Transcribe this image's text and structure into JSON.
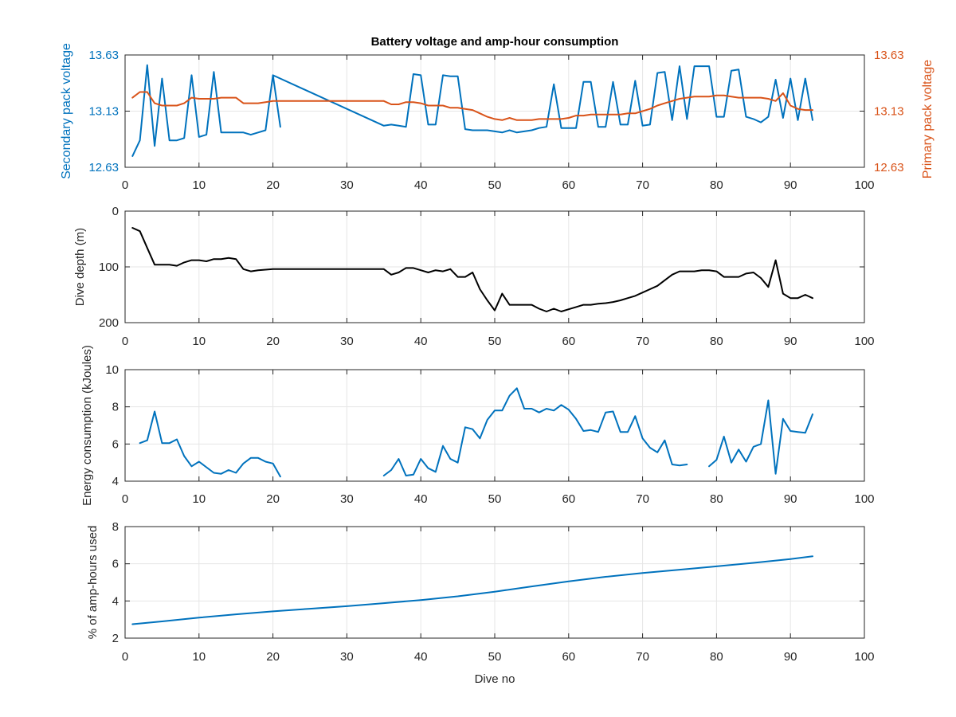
{
  "title": "Battery voltage and amp-hour consumption",
  "colors": {
    "blue": "#0072BD",
    "orange": "#D95319",
    "black": "#000000",
    "grid": "#e6e6e6",
    "axis": "#262626"
  },
  "chart_data": [
    {
      "id": "voltage",
      "type": "line",
      "title": "Battery voltage and amp-hour consumption",
      "xlabel": "",
      "ylabel_left": "Secondary pack voltage",
      "ylabel_right": "Primary pack voltage",
      "xlim": [
        0,
        100
      ],
      "ylim": [
        12.63,
        13.63
      ],
      "ylim_right": [
        12.63,
        13.63
      ],
      "xticks": [
        0,
        10,
        20,
        30,
        40,
        50,
        60,
        70,
        80,
        90,
        100
      ],
      "yticks": [
        12.63,
        13.13,
        13.63
      ],
      "yticklabels": [
        "12.63",
        "13.13",
        "13.63"
      ],
      "yticks_right": [
        12.63,
        13.13,
        13.63
      ],
      "yticklabels_right": [
        "12.63",
        "13.13",
        "13.63"
      ],
      "grid": true,
      "series": [
        {
          "axis": "left",
          "color": "#0072BD",
          "x": [
            1,
            2,
            3,
            4,
            5,
            6,
            7,
            8,
            9,
            10,
            11,
            12,
            13,
            14,
            15,
            16,
            17,
            18,
            19,
            20,
            21,
            null,
            20,
            35,
            36,
            37,
            38,
            39,
            40,
            41,
            42,
            43,
            44,
            45,
            46,
            47,
            48,
            49,
            50,
            51,
            52,
            53,
            54,
            55,
            56,
            57,
            58,
            59,
            60,
            61,
            62,
            63,
            64,
            65,
            66,
            67,
            68,
            69,
            70,
            71,
            72,
            73,
            74,
            75,
            76,
            77,
            78,
            79,
            80,
            81,
            82,
            83,
            84,
            85,
            86,
            87,
            88,
            89,
            90,
            91,
            92,
            93
          ],
          "y": [
            12.73,
            12.87,
            13.54,
            12.82,
            13.42,
            12.87,
            12.87,
            12.89,
            13.45,
            12.9,
            12.92,
            13.48,
            12.94,
            12.94,
            12.94,
            12.94,
            12.92,
            12.94,
            12.96,
            13.45,
            12.99,
            null,
            13.45,
            13.0,
            13.01,
            13.0,
            12.99,
            13.46,
            13.45,
            13.01,
            13.01,
            13.45,
            13.44,
            13.44,
            12.97,
            12.96,
            12.96,
            12.96,
            12.95,
            12.94,
            12.96,
            12.94,
            12.95,
            12.96,
            12.98,
            12.99,
            13.37,
            12.98,
            12.98,
            12.98,
            13.39,
            13.39,
            12.99,
            12.99,
            13.39,
            13.01,
            13.01,
            13.4,
            13.0,
            13.01,
            13.47,
            13.48,
            13.05,
            13.53,
            13.06,
            13.53,
            13.53,
            13.53,
            13.08,
            13.08,
            13.49,
            13.5,
            13.08,
            13.06,
            13.03,
            13.08,
            13.41,
            13.07,
            13.42,
            13.05,
            13.42,
            13.05
          ]
        },
        {
          "axis": "right",
          "color": "#D95319",
          "x": [
            1,
            2,
            3,
            4,
            5,
            6,
            7,
            8,
            9,
            10,
            11,
            12,
            13,
            14,
            15,
            16,
            17,
            18,
            19,
            20,
            21,
            22,
            23,
            24,
            25,
            26,
            27,
            28,
            29,
            30,
            31,
            32,
            33,
            34,
            35,
            36,
            37,
            38,
            39,
            40,
            41,
            42,
            43,
            44,
            45,
            46,
            47,
            48,
            49,
            50,
            51,
            52,
            53,
            54,
            55,
            56,
            57,
            58,
            59,
            60,
            61,
            62,
            63,
            64,
            65,
            66,
            67,
            68,
            69,
            70,
            71,
            72,
            73,
            74,
            75,
            76,
            77,
            78,
            79,
            80,
            81,
            82,
            83,
            84,
            85,
            86,
            87,
            88,
            89,
            90,
            91,
            92,
            93
          ],
          "y": [
            13.25,
            13.3,
            13.3,
            13.2,
            13.18,
            13.18,
            13.18,
            13.2,
            13.25,
            13.24,
            13.24,
            13.24,
            13.25,
            13.25,
            13.25,
            13.2,
            13.2,
            13.2,
            13.21,
            13.22,
            13.22,
            13.22,
            13.22,
            13.22,
            13.22,
            13.22,
            13.22,
            13.22,
            13.22,
            13.22,
            13.22,
            13.22,
            13.22,
            13.22,
            13.22,
            13.19,
            13.19,
            13.21,
            13.21,
            13.2,
            13.18,
            13.18,
            13.18,
            13.16,
            13.16,
            13.15,
            13.14,
            13.11,
            13.08,
            13.06,
            13.05,
            13.07,
            13.05,
            13.05,
            13.05,
            13.06,
            13.06,
            13.06,
            13.06,
            13.07,
            13.09,
            13.09,
            13.1,
            13.1,
            13.1,
            13.1,
            13.1,
            13.11,
            13.11,
            13.13,
            13.15,
            13.18,
            13.2,
            13.22,
            13.24,
            13.25,
            13.26,
            13.26,
            13.26,
            13.27,
            13.27,
            13.26,
            13.25,
            13.25,
            13.25,
            13.25,
            13.24,
            13.22,
            13.29,
            13.18,
            13.15,
            13.14,
            13.14
          ]
        }
      ]
    },
    {
      "id": "depth",
      "type": "line",
      "title": "",
      "xlabel": "",
      "ylabel": "Dive depth (m)",
      "xlim": [
        0,
        100
      ],
      "ylim": [
        0,
        200
      ],
      "y_reversed": true,
      "xticks": [
        0,
        10,
        20,
        30,
        40,
        50,
        60,
        70,
        80,
        90,
        100
      ],
      "yticks": [
        0,
        100,
        200
      ],
      "yticklabels": [
        "0",
        "100",
        "200"
      ],
      "grid": true,
      "series": [
        {
          "color": "#000000",
          "x": [
            1,
            2,
            3,
            4,
            5,
            6,
            7,
            8,
            9,
            10,
            11,
            12,
            13,
            14,
            15,
            16,
            17,
            18,
            19,
            20,
            21,
            22,
            23,
            24,
            25,
            26,
            27,
            28,
            29,
            30,
            31,
            32,
            33,
            34,
            35,
            36,
            37,
            38,
            39,
            40,
            41,
            42,
            43,
            44,
            45,
            46,
            47,
            48,
            49,
            50,
            51,
            52,
            53,
            54,
            55,
            56,
            57,
            58,
            59,
            60,
            61,
            62,
            63,
            64,
            65,
            66,
            67,
            68,
            69,
            70,
            71,
            72,
            73,
            74,
            75,
            76,
            77,
            78,
            79,
            80,
            81,
            82,
            83,
            84,
            85,
            86,
            87,
            88,
            89,
            90,
            91,
            92,
            93
          ],
          "y": [
            30,
            36,
            66,
            96,
            96,
            96,
            98,
            92,
            88,
            88,
            90,
            86,
            86,
            84,
            86,
            104,
            108,
            106,
            105,
            104,
            104,
            104,
            104,
            104,
            104,
            104,
            104,
            104,
            104,
            104,
            104,
            104,
            104,
            104,
            104,
            114,
            110,
            102,
            102,
            106,
            110,
            106,
            108,
            104,
            118,
            118,
            110,
            140,
            160,
            178,
            148,
            168,
            168,
            168,
            168,
            175,
            180,
            175,
            180,
            176,
            172,
            168,
            168,
            166,
            165,
            163,
            160,
            156,
            152,
            146,
            140,
            134,
            124,
            114,
            108,
            108,
            108,
            106,
            106,
            108,
            118,
            118,
            118,
            112,
            110,
            120,
            136,
            88,
            148,
            156,
            156,
            150,
            156
          ]
        }
      ]
    },
    {
      "id": "energy",
      "type": "line",
      "title": "",
      "xlabel": "",
      "ylabel": "Energy consumption (kJoules)",
      "xlim": [
        0,
        100
      ],
      "ylim": [
        4,
        10
      ],
      "xticks": [
        0,
        10,
        20,
        30,
        40,
        50,
        60,
        70,
        80,
        90,
        100
      ],
      "yticks": [
        4,
        6,
        8,
        10
      ],
      "yticklabels": [
        "4",
        "6",
        "8",
        "10"
      ],
      "grid": true,
      "series": [
        {
          "color": "#0072BD",
          "x": [
            2,
            3,
            4,
            5,
            6,
            7,
            8,
            9,
            10,
            11,
            12,
            13,
            14,
            15,
            16,
            17,
            18,
            19,
            20,
            21,
            null,
            35,
            36,
            37,
            38,
            39,
            40,
            41,
            42,
            43,
            44,
            45,
            46,
            47,
            48,
            49,
            50,
            51,
            52,
            53,
            54,
            55,
            56,
            57,
            58,
            59,
            60,
            61,
            62,
            63,
            64,
            65,
            66,
            67,
            68,
            69,
            70,
            71,
            72,
            73,
            74,
            75,
            76,
            null,
            79,
            80,
            81,
            82,
            83,
            84,
            85,
            86,
            87,
            88,
            89,
            90,
            91,
            92,
            93
          ],
          "y": [
            6.05,
            6.2,
            7.75,
            6.05,
            6.05,
            6.25,
            5.35,
            4.8,
            5.05,
            4.75,
            4.45,
            4.4,
            4.6,
            4.45,
            4.95,
            5.25,
            5.25,
            5.05,
            4.95,
            4.25,
            null,
            4.3,
            4.6,
            5.2,
            4.3,
            4.35,
            5.2,
            4.7,
            4.5,
            5.9,
            5.2,
            5.0,
            6.9,
            6.8,
            6.3,
            7.3,
            7.8,
            7.8,
            8.6,
            9.0,
            7.9,
            7.9,
            7.7,
            7.9,
            7.8,
            8.1,
            7.85,
            7.35,
            6.7,
            6.75,
            6.65,
            7.7,
            7.75,
            6.65,
            6.65,
            7.5,
            6.3,
            5.8,
            5.55,
            6.2,
            4.9,
            4.85,
            4.9,
            null,
            4.8,
            5.15,
            6.4,
            5.0,
            5.7,
            5.05,
            5.85,
            6.0,
            8.35,
            4.4,
            7.35,
            6.7,
            6.65,
            6.6,
            7.6
          ]
        }
      ]
    },
    {
      "id": "amphours",
      "type": "line",
      "title": "",
      "xlabel": "Dive no",
      "ylabel": "% of amp-hours used",
      "xlim": [
        0,
        100
      ],
      "ylim": [
        2,
        8
      ],
      "xticks": [
        0,
        10,
        20,
        30,
        40,
        50,
        60,
        70,
        80,
        90,
        100
      ],
      "yticks": [
        2,
        4,
        6,
        8
      ],
      "yticklabels": [
        "2",
        "4",
        "6",
        "8"
      ],
      "grid": true,
      "series": [
        {
          "color": "#0072BD",
          "x": [
            1,
            5,
            10,
            15,
            20,
            25,
            30,
            35,
            40,
            45,
            50,
            55,
            60,
            65,
            70,
            75,
            80,
            85,
            90,
            93
          ],
          "y": [
            2.75,
            2.9,
            3.1,
            3.28,
            3.44,
            3.58,
            3.72,
            3.88,
            4.05,
            4.25,
            4.5,
            4.78,
            5.05,
            5.3,
            5.5,
            5.68,
            5.86,
            6.05,
            6.25,
            6.4
          ]
        }
      ]
    }
  ]
}
